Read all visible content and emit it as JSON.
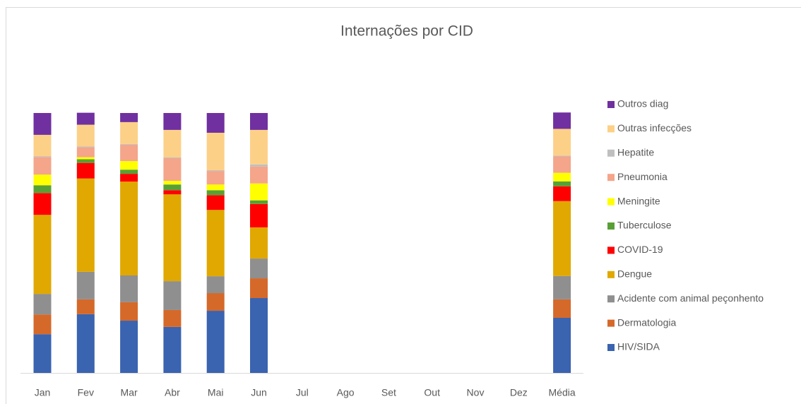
{
  "chart_data": {
    "type": "stacked_bar",
    "title": "Internações por CID",
    "categories": [
      "Jan",
      "Fev",
      "Mar",
      "Abr",
      "Mai",
      "Jun",
      "Jul",
      "Ago",
      "Set",
      "Out",
      "Nov",
      "Dez",
      "Média"
    ],
    "ylim": [
      0,
      100
    ],
    "legend": "right",
    "series": [
      {
        "name": "HIV/SIDA",
        "color": "#3a63b0",
        "values": [
          14.9,
          22.6,
          20.1,
          17.7,
          23.9,
          28.8,
          null,
          null,
          null,
          null,
          null,
          null,
          21.2
        ]
      },
      {
        "name": "Dermatologia",
        "color": "#d5692a",
        "values": [
          7.6,
          5.7,
          7.1,
          6.5,
          6.8,
          7.6,
          null,
          null,
          null,
          null,
          null,
          null,
          7.1
        ]
      },
      {
        "name": "Acidente com animal peçonhento",
        "color": "#8f8f8f",
        "values": [
          7.9,
          10.6,
          10.3,
          11.1,
          6.5,
          7.6,
          null,
          null,
          null,
          null,
          null,
          null,
          9.0
        ]
      },
      {
        "name": "Dengue",
        "color": "#e0a800",
        "values": [
          30.4,
          35.9,
          36.1,
          33.4,
          25.5,
          12.0,
          null,
          null,
          null,
          null,
          null,
          null,
          28.8
        ]
      },
      {
        "name": "COVID-19",
        "color": "#ff0000",
        "values": [
          8.4,
          6.0,
          3.0,
          1.6,
          5.7,
          9.0,
          null,
          null,
          null,
          null,
          null,
          null,
          5.7
        ]
      },
      {
        "name": "Tuberculose",
        "color": "#58a035",
        "values": [
          3.0,
          1.4,
          1.6,
          2.2,
          1.9,
          1.4,
          null,
          null,
          null,
          null,
          null,
          null,
          1.9
        ]
      },
      {
        "name": "Meningite",
        "color": "#ffff00",
        "values": [
          4.1,
          0.8,
          3.3,
          1.4,
          2.2,
          6.5,
          null,
          null,
          null,
          null,
          null,
          null,
          3.3
        ]
      },
      {
        "name": "Pneumonia",
        "color": "#f4a58a",
        "values": [
          6.8,
          3.8,
          6.3,
          8.7,
          5.2,
          6.5,
          null,
          null,
          null,
          null,
          null,
          null,
          6.3
        ]
      },
      {
        "name": "Hepatite",
        "color": "#bfbfbf",
        "values": [
          0.3,
          0.3,
          0.3,
          0.3,
          0.3,
          0.8,
          null,
          null,
          null,
          null,
          null,
          null,
          0.3
        ]
      },
      {
        "name": "Outras infecções",
        "color": "#fdd088",
        "values": [
          8.2,
          8.4,
          8.4,
          10.6,
          14.4,
          13.3,
          null,
          null,
          null,
          null,
          null,
          null,
          10.3
        ]
      },
      {
        "name": "Outros diag",
        "color": "#7030a0",
        "values": [
          8.4,
          4.6,
          3.5,
          6.5,
          7.6,
          6.5,
          null,
          null,
          null,
          null,
          null,
          null,
          6.3
        ]
      }
    ]
  }
}
